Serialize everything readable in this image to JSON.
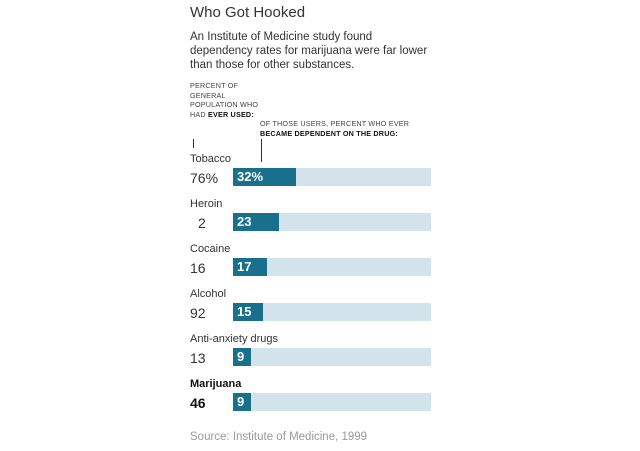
{
  "chart_data": {
    "type": "bar",
    "title": "Who Got Hooked",
    "subtitle": "An Institute of Medicine study found dependency rates for marijuana were far lower than those for other substances.",
    "ever_used_header": {
      "plain": "Percent of general population who had",
      "bold": "ever used:"
    },
    "dependent_header": {
      "plain": "Of those users, percent who ever",
      "bold": "became dependent on the drug:"
    },
    "categories": [
      "Tobacco",
      "Heroin",
      "Cocaine",
      "Alcohol",
      "Anti-anxiety drugs",
      "Marijuana"
    ],
    "ever_used_labels": [
      "76%",
      "2",
      "16",
      "92",
      "13",
      "46"
    ],
    "dependent_labels": [
      "32%",
      "23",
      "17",
      "15",
      "9",
      "9"
    ],
    "series": [
      {
        "name": "Percent who ever used",
        "values": [
          76,
          2,
          16,
          92,
          13,
          46
        ]
      },
      {
        "name": "Percent of users who became dependent",
        "values": [
          32,
          23,
          17,
          15,
          9,
          9
        ]
      }
    ],
    "highlight": "Marijuana",
    "xlim": [
      0,
      100
    ],
    "bar_color": "#18708d",
    "track_color": "#d3e3ec",
    "source": "Source: Institute of Medicine, 1999"
  }
}
